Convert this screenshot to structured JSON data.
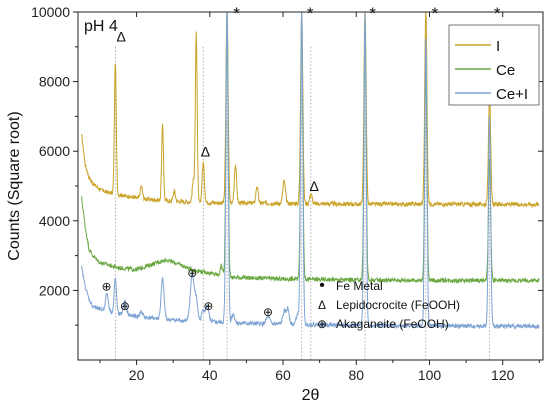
{
  "chart_data": {
    "type": "line",
    "panel_label": "pH 4",
    "xlabel": "2θ",
    "ylabel": "Counts (Square root)",
    "xlim": [
      4,
      131
    ],
    "ylim": [
      0,
      10000
    ],
    "xticks": [
      20,
      40,
      60,
      80,
      100,
      120
    ],
    "yticks": [
      2000,
      4000,
      6000,
      8000,
      10000
    ],
    "legend_position": "top-right",
    "series": [
      {
        "name": "I",
        "color": "#c9a227",
        "baseline": [
          [
            5,
            6450
          ],
          [
            6,
            5600
          ],
          [
            7,
            5250
          ],
          [
            8,
            5080
          ],
          [
            10,
            4900
          ],
          [
            12,
            4820
          ],
          [
            20,
            4650
          ],
          [
            30,
            4560
          ],
          [
            40,
            4520
          ],
          [
            60,
            4500
          ],
          [
            80,
            4480
          ],
          [
            100,
            4480
          ],
          [
            130,
            4470
          ]
        ],
        "peaks": [
          [
            14.2,
            3800,
            0.25
          ],
          [
            21.3,
            350,
            0.3
          ],
          [
            27.1,
            2150,
            0.25
          ],
          [
            30.3,
            300,
            0.3
          ],
          [
            35.5,
            600,
            0.3
          ],
          [
            36.3,
            4850,
            0.25
          ],
          [
            38.2,
            1150,
            0.3
          ],
          [
            44.7,
            5600,
            0.3
          ],
          [
            47.0,
            1100,
            0.3
          ],
          [
            52.9,
            500,
            0.3
          ],
          [
            60.3,
            650,
            0.35
          ],
          [
            65.1,
            5600,
            0.3
          ],
          [
            67.6,
            300,
            0.3
          ],
          [
            82.4,
            5600,
            0.3
          ],
          [
            99.0,
            5600,
            0.3
          ],
          [
            116.4,
            3150,
            0.3
          ]
        ]
      },
      {
        "name": "Ce",
        "color": "#6aa842",
        "baseline": [
          [
            5,
            4650
          ],
          [
            6,
            3800
          ],
          [
            7,
            3200
          ],
          [
            8,
            3000
          ],
          [
            10,
            2800
          ],
          [
            15,
            2650
          ],
          [
            20,
            2600
          ],
          [
            25,
            2780
          ],
          [
            28,
            2880
          ],
          [
            31,
            2780
          ],
          [
            35,
            2600
          ],
          [
            40,
            2500
          ],
          [
            45,
            2380
          ],
          [
            60,
            2330
          ],
          [
            80,
            2300
          ],
          [
            100,
            2290
          ],
          [
            130,
            2280
          ]
        ],
        "peaks": [
          [
            43.2,
            300,
            0.3
          ],
          [
            44.7,
            7400,
            0.3
          ],
          [
            65.1,
            7400,
            0.3
          ],
          [
            82.4,
            7400,
            0.3
          ],
          [
            99.0,
            6100,
            0.3
          ],
          [
            116.4,
            3450,
            0.3
          ]
        ]
      },
      {
        "name": "Ce+I",
        "color": "#7ea3d4",
        "baseline": [
          [
            5,
            2650
          ],
          [
            6,
            2100
          ],
          [
            7,
            1750
          ],
          [
            8,
            1550
          ],
          [
            10,
            1450
          ],
          [
            15,
            1330
          ],
          [
            20,
            1250
          ],
          [
            30,
            1150
          ],
          [
            40,
            1100
          ],
          [
            50,
            1050
          ],
          [
            60,
            1030
          ],
          [
            80,
            1000
          ],
          [
            100,
            980
          ],
          [
            130,
            970
          ]
        ],
        "peaks": [
          [
            11.9,
            500,
            0.4
          ],
          [
            14.2,
            1000,
            0.3
          ],
          [
            16.8,
            380,
            0.4
          ],
          [
            21.3,
            150,
            0.4
          ],
          [
            27.1,
            1150,
            0.4
          ],
          [
            35.2,
            1350,
            0.5
          ],
          [
            36.3,
            600,
            0.4
          ],
          [
            38.2,
            350,
            0.4
          ],
          [
            39.3,
            450,
            0.4
          ],
          [
            44.7,
            9200,
            0.3
          ],
          [
            46.4,
            250,
            0.4
          ],
          [
            55.9,
            200,
            0.5
          ],
          [
            60.3,
            350,
            0.4
          ],
          [
            61.3,
            450,
            0.4
          ],
          [
            64.0,
            300,
            0.4
          ],
          [
            65.1,
            9000,
            0.3
          ],
          [
            82.4,
            9000,
            0.3
          ],
          [
            99.0,
            8200,
            0.3
          ],
          [
            116.4,
            6000,
            0.3
          ]
        ]
      }
    ],
    "annotations": [
      {
        "symbol": "Δ",
        "x": 15.8,
        "y": 9150,
        "marker": "lepidocrocite"
      },
      {
        "symbol": "Δ",
        "x": 38.8,
        "y": 5850,
        "marker": "lepidocrocite"
      },
      {
        "symbol": "Δ",
        "x": 68.5,
        "y": 4850,
        "marker": "lepidocrocite"
      },
      {
        "symbol": "*",
        "x": 47.3,
        "y": 9800,
        "marker": "fe-metal"
      },
      {
        "symbol": "*",
        "x": 67.4,
        "y": 9800,
        "marker": "fe-metal"
      },
      {
        "symbol": "*",
        "x": 84.5,
        "y": 9800,
        "marker": "fe-metal"
      },
      {
        "symbol": "*",
        "x": 101.5,
        "y": 9800,
        "marker": "fe-metal"
      },
      {
        "symbol": "*",
        "x": 118.5,
        "y": 9800,
        "marker": "fe-metal"
      },
      {
        "symbol": "⊕",
        "x": 11.8,
        "y": 2000,
        "marker": "akaganeite"
      },
      {
        "symbol": "⊕",
        "x": 16.8,
        "y": 1430,
        "marker": "akaganeite"
      },
      {
        "symbol": "⊕",
        "x": 35.2,
        "y": 2380,
        "marker": "akaganeite"
      },
      {
        "symbol": "⊕",
        "x": 39.6,
        "y": 1430,
        "marker": "akaganeite"
      },
      {
        "symbol": "⊕",
        "x": 55.9,
        "y": 1270,
        "marker": "akaganeite"
      }
    ],
    "reference_lines": [
      14.2,
      38.2,
      44.7,
      65.1,
      67.6,
      82.4,
      99.0,
      116.4
    ],
    "marker_legend": [
      {
        "symbol": "•",
        "label": "Fe Metal"
      },
      {
        "symbol": "Δ",
        "label": "Lepidocrocite (FeOOH)"
      },
      {
        "symbol": "⊕",
        "label": "Akaganeite (FeOOH)"
      }
    ]
  }
}
